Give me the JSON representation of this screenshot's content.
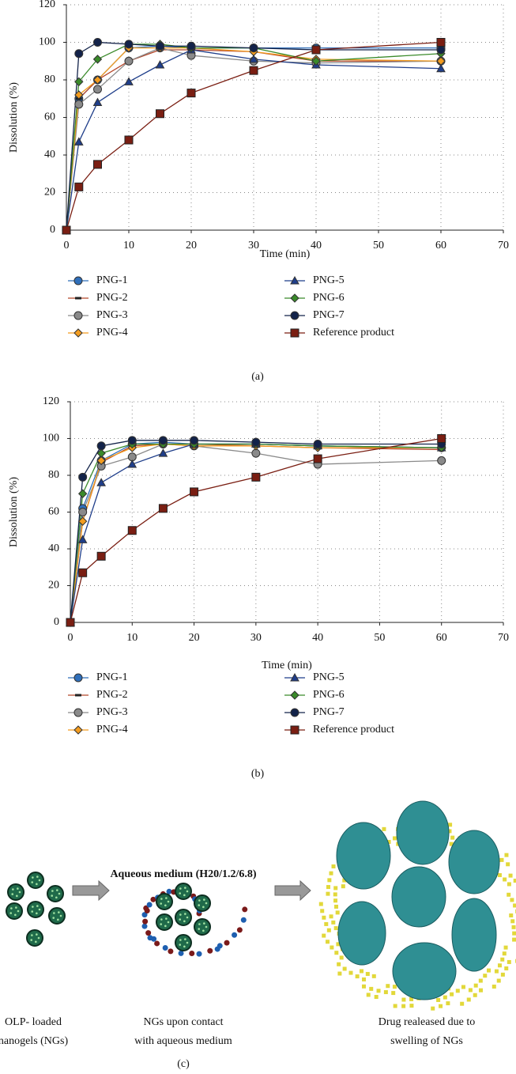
{
  "chart_data": [
    {
      "type": "line",
      "caption": "(a)",
      "x_label": "Time (min)",
      "y_label": "Dissolution (%)",
      "x": [
        0,
        2,
        5,
        10,
        15,
        20,
        30,
        40,
        60
      ],
      "xlim": [
        0,
        70
      ],
      "xticks": [
        0,
        10,
        20,
        30,
        40,
        50,
        60,
        70
      ],
      "ylim": [
        0,
        120
      ],
      "yticks": [
        0,
        20,
        40,
        60,
        80,
        100,
        120
      ],
      "grid": true,
      "legend": "below",
      "series": [
        {
          "name": "PNG-1",
          "color": "#2f6fba",
          "marker": "circle",
          "values": [
            0,
            70,
            80,
            97,
            98,
            97,
            97,
            97,
            97
          ]
        },
        {
          "name": "PNG-2",
          "color": "#b5472a",
          "marker": "dash",
          "values": [
            0,
            70,
            80,
            90,
            96,
            96,
            95,
            90,
            90
          ]
        },
        {
          "name": "PNG-3",
          "color": "#8a8a8a",
          "marker": "circle",
          "values": [
            0,
            67,
            75,
            90,
            97,
            93,
            90,
            89,
            90
          ]
        },
        {
          "name": "PNG-4",
          "color": "#f39c1f",
          "marker": "diamond",
          "values": [
            0,
            72,
            80,
            97,
            97,
            97,
            95,
            91,
            90
          ]
        },
        {
          "name": "PNG-5",
          "color": "#1f3e8a",
          "marker": "triangle",
          "values": [
            0,
            47,
            68,
            79,
            88,
            96,
            91,
            88,
            86
          ]
        },
        {
          "name": "PNG-6",
          "color": "#3a8a2a",
          "marker": "diamond",
          "values": [
            0,
            79,
            91,
            99,
            99,
            97,
            97,
            90,
            94
          ]
        },
        {
          "name": "PNG-7",
          "color": "#13234a",
          "marker": "circle",
          "values": [
            0,
            94,
            100,
            99,
            98,
            98,
            97,
            96,
            96
          ]
        },
        {
          "name": "Reference product",
          "color": "#7a1e12",
          "marker": "square",
          "values": [
            0,
            23,
            35,
            48,
            62,
            73,
            85,
            96,
            100
          ]
        }
      ]
    },
    {
      "type": "line",
      "caption": "(b)",
      "x_label": "Time (min)",
      "y_label": "Dissolution (%)",
      "x": [
        0,
        2,
        5,
        10,
        15,
        20,
        30,
        40,
        60
      ],
      "xlim": [
        0,
        70
      ],
      "xticks": [
        0,
        10,
        20,
        30,
        40,
        50,
        60,
        70
      ],
      "ylim": [
        0,
        120
      ],
      "yticks": [
        0,
        20,
        40,
        60,
        80,
        100,
        120
      ],
      "grid": true,
      "legend": "below",
      "series": [
        {
          "name": "PNG-1",
          "color": "#2f6fba",
          "marker": "circle",
          "values": [
            0,
            62,
            88,
            97,
            98,
            97,
            97,
            96,
            95
          ]
        },
        {
          "name": "PNG-2",
          "color": "#b5472a",
          "marker": "dash",
          "values": [
            0,
            55,
            87,
            96,
            97,
            97,
            96,
            95,
            94
          ]
        },
        {
          "name": "PNG-3",
          "color": "#8a8a8a",
          "marker": "circle",
          "values": [
            0,
            60,
            85,
            90,
            97,
            96,
            92,
            86,
            88
          ]
        },
        {
          "name": "PNG-4",
          "color": "#f39c1f",
          "marker": "diamond",
          "values": [
            0,
            55,
            88,
            95,
            97,
            96,
            96,
            95,
            95
          ]
        },
        {
          "name": "PNG-5",
          "color": "#1f3e8a",
          "marker": "triangle",
          "values": [
            0,
            45,
            76,
            86,
            92,
            97,
            97,
            96,
            95
          ]
        },
        {
          "name": "PNG-6",
          "color": "#3a8a2a",
          "marker": "diamond",
          "values": [
            0,
            70,
            92,
            97,
            97,
            97,
            97,
            96,
            95
          ]
        },
        {
          "name": "PNG-7",
          "color": "#13234a",
          "marker": "circle",
          "values": [
            0,
            79,
            96,
            99,
            99,
            99,
            98,
            97,
            97
          ]
        },
        {
          "name": "Reference product",
          "color": "#7a1e12",
          "marker": "square",
          "values": [
            0,
            27,
            36,
            50,
            62,
            71,
            79,
            89,
            100
          ]
        }
      ]
    }
  ],
  "diagram": {
    "title": "Aqueous medium (H20/1.2/6.8)",
    "caption": "(c)",
    "labels": [
      [
        "OLP- loaded",
        "nanogels (NGs)"
      ],
      [
        "NGs upon contact",
        "with aqueous medium"
      ],
      [
        "Drug realeased due to",
        "swelling of NGs"
      ]
    ]
  }
}
